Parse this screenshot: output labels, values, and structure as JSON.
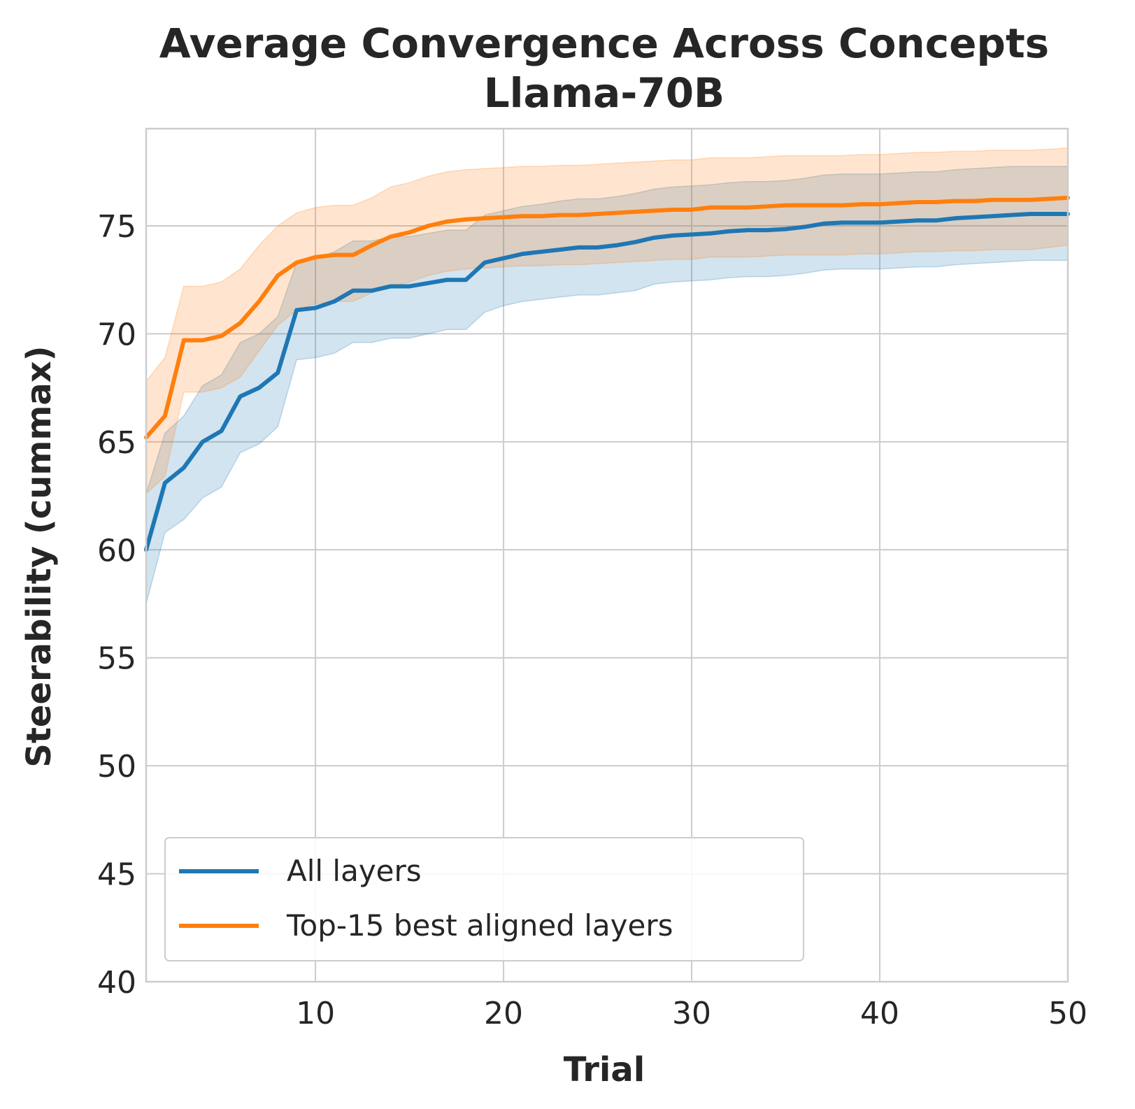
{
  "chart_data": {
    "type": "line",
    "title": "Average Convergence Across Concepts",
    "subtitle": "Llama-70B",
    "xlabel": "Trial",
    "ylabel": "Steerability (cummax)",
    "xlim": [
      1,
      50
    ],
    "ylim": [
      40,
      79.5
    ],
    "xticks": [
      10,
      20,
      30,
      40,
      50
    ],
    "yticks": [
      40,
      45,
      50,
      55,
      60,
      65,
      70,
      75
    ],
    "grid": true,
    "legend_position": "lower-left",
    "x": [
      1,
      2,
      3,
      4,
      5,
      6,
      7,
      8,
      9,
      10,
      11,
      12,
      13,
      14,
      15,
      16,
      17,
      18,
      19,
      20,
      21,
      22,
      23,
      24,
      25,
      26,
      27,
      28,
      29,
      30,
      31,
      32,
      33,
      34,
      35,
      36,
      37,
      38,
      39,
      40,
      41,
      42,
      43,
      44,
      45,
      46,
      47,
      48,
      49,
      50
    ],
    "series": [
      {
        "name": "All layers",
        "color": "#1f77b4",
        "values": [
          60.0,
          63.1,
          63.8,
          65.0,
          65.5,
          67.1,
          67.5,
          68.2,
          71.1,
          71.2,
          71.5,
          72.0,
          72.0,
          72.2,
          72.2,
          72.35,
          72.5,
          72.5,
          73.3,
          73.5,
          73.7,
          73.8,
          73.9,
          74.0,
          74.0,
          74.1,
          74.25,
          74.45,
          74.55,
          74.6,
          74.65,
          74.75,
          74.8,
          74.8,
          74.85,
          74.95,
          75.1,
          75.15,
          75.15,
          75.15,
          75.2,
          75.25,
          75.25,
          75.35,
          75.4,
          75.45,
          75.5,
          75.55,
          75.55,
          75.55
        ],
        "lower": [
          57.5,
          60.8,
          61.4,
          62.4,
          62.9,
          64.5,
          64.9,
          65.7,
          68.8,
          68.9,
          69.1,
          69.6,
          69.6,
          69.8,
          69.8,
          70.0,
          70.2,
          70.2,
          71.0,
          71.3,
          71.5,
          71.6,
          71.7,
          71.8,
          71.8,
          71.9,
          72.0,
          72.3,
          72.4,
          72.45,
          72.5,
          72.6,
          72.65,
          72.65,
          72.7,
          72.8,
          72.95,
          73.0,
          73.0,
          73.0,
          73.05,
          73.1,
          73.1,
          73.2,
          73.25,
          73.3,
          73.35,
          73.4,
          73.4,
          73.4
        ],
        "upper": [
          62.6,
          65.4,
          66.2,
          67.6,
          68.1,
          69.6,
          70.0,
          70.8,
          73.3,
          73.5,
          73.8,
          74.3,
          74.3,
          74.5,
          74.5,
          74.65,
          74.8,
          74.8,
          75.5,
          75.7,
          75.9,
          76.0,
          76.15,
          76.25,
          76.25,
          76.35,
          76.5,
          76.7,
          76.8,
          76.85,
          76.9,
          77.0,
          77.05,
          77.05,
          77.1,
          77.2,
          77.35,
          77.4,
          77.4,
          77.4,
          77.45,
          77.5,
          77.5,
          77.6,
          77.65,
          77.7,
          77.75,
          77.75,
          77.75,
          77.75
        ]
      },
      {
        "name": "Top-15 best aligned layers",
        "color": "#ff7f0e",
        "values": [
          65.2,
          66.2,
          69.7,
          69.7,
          69.9,
          70.5,
          71.5,
          72.7,
          73.3,
          73.55,
          73.65,
          73.65,
          74.1,
          74.5,
          74.7,
          75.0,
          75.2,
          75.3,
          75.35,
          75.4,
          75.45,
          75.45,
          75.5,
          75.5,
          75.55,
          75.6,
          75.65,
          75.7,
          75.75,
          75.75,
          75.85,
          75.85,
          75.85,
          75.9,
          75.95,
          75.95,
          75.95,
          75.95,
          76.0,
          76.0,
          76.05,
          76.1,
          76.1,
          76.15,
          76.15,
          76.2,
          76.2,
          76.2,
          76.25,
          76.3
        ],
        "lower": [
          62.6,
          63.4,
          67.3,
          67.3,
          67.5,
          68.0,
          69.2,
          70.4,
          71.1,
          71.4,
          71.5,
          71.5,
          71.9,
          72.2,
          72.4,
          72.7,
          72.9,
          73.0,
          73.05,
          73.1,
          73.15,
          73.15,
          73.2,
          73.2,
          73.25,
          73.3,
          73.35,
          73.4,
          73.45,
          73.45,
          73.55,
          73.55,
          73.55,
          73.6,
          73.65,
          73.65,
          73.65,
          73.65,
          73.7,
          73.7,
          73.75,
          73.8,
          73.8,
          73.85,
          73.85,
          73.9,
          73.9,
          73.9,
          74.0,
          74.1
        ],
        "upper": [
          67.8,
          68.9,
          72.2,
          72.2,
          72.4,
          73.0,
          74.1,
          75.0,
          75.6,
          75.85,
          75.95,
          75.95,
          76.3,
          76.8,
          77.0,
          77.3,
          77.5,
          77.6,
          77.65,
          77.7,
          77.75,
          77.75,
          77.8,
          77.8,
          77.85,
          77.9,
          77.95,
          78.0,
          78.05,
          78.05,
          78.15,
          78.15,
          78.15,
          78.2,
          78.25,
          78.25,
          78.25,
          78.25,
          78.3,
          78.3,
          78.35,
          78.4,
          78.4,
          78.45,
          78.45,
          78.5,
          78.5,
          78.5,
          78.55,
          78.6
        ]
      }
    ]
  }
}
